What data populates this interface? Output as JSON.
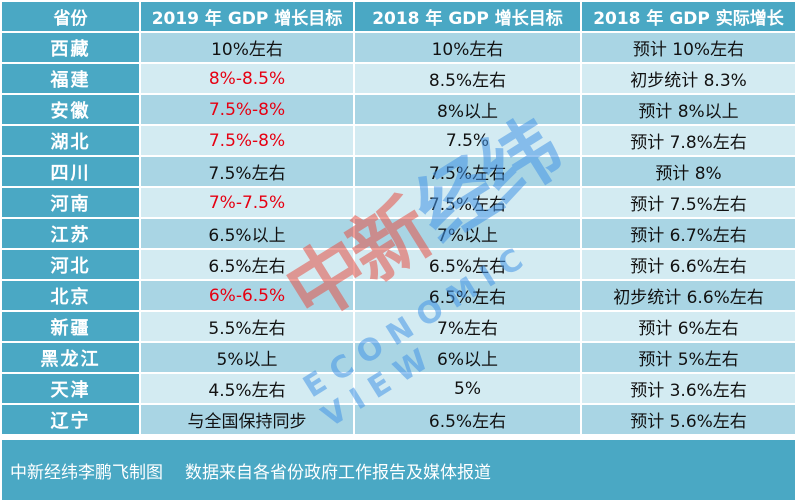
{
  "table": {
    "headers": [
      "省份",
      "2019 年 GDP 增长目标",
      "2018 年 GDP 增长目标",
      "2018 年 GDP 实际增长"
    ],
    "rows": [
      {
        "province": "西藏",
        "target2019": "10%左右",
        "target2019_red": false,
        "target2018": "10%左右",
        "actual2018": "预计 10%左右"
      },
      {
        "province": "福建",
        "target2019": "8%-8.5%",
        "target2019_red": true,
        "target2018": "8.5%左右",
        "actual2018": "初步统计 8.3%"
      },
      {
        "province": "安徽",
        "target2019": "7.5%-8%",
        "target2019_red": true,
        "target2018": "8%以上",
        "actual2018": "预计 8%以上"
      },
      {
        "province": "湖北",
        "target2019": "7.5%-8%",
        "target2019_red": true,
        "target2018": "7.5%",
        "actual2018": "预计 7.8%左右"
      },
      {
        "province": "四川",
        "target2019": "7.5%左右",
        "target2019_red": false,
        "target2018": "7.5%左右",
        "actual2018": "预计 8%"
      },
      {
        "province": "河南",
        "target2019": "7%-7.5%",
        "target2019_red": true,
        "target2018": "7.5%左右",
        "actual2018": "预计 7.5%左右"
      },
      {
        "province": "江苏",
        "target2019": "6.5%以上",
        "target2019_red": false,
        "target2018": "7%以上",
        "actual2018": "预计 6.7%左右"
      },
      {
        "province": "河北",
        "target2019": "6.5%左右",
        "target2019_red": false,
        "target2018": "6.5%左右",
        "actual2018": "预计 6.6%左右"
      },
      {
        "province": "北京",
        "target2019": "6%-6.5%",
        "target2019_red": true,
        "target2018": "6.5%左右",
        "actual2018": "初步统计 6.6%左右"
      },
      {
        "province": "新疆",
        "target2019": "5.5%左右",
        "target2019_red": false,
        "target2018": "7%左右",
        "actual2018": "预计 6%左右"
      },
      {
        "province": "黑龙江",
        "target2019": "5%以上",
        "target2019_red": false,
        "target2018": "6%以上",
        "actual2018": "预计 5%左右"
      },
      {
        "province": "天津",
        "target2019": "4.5%左右",
        "target2019_red": false,
        "target2018": "5%",
        "actual2018": "预计 3.6%左右"
      },
      {
        "province": "辽宁",
        "target2019": "与全国保持同步",
        "target2019_red": false,
        "target2018": "6.5%左右",
        "actual2018": "预计 5.6%左右"
      }
    ]
  },
  "footer": {
    "credit": "中新经纬李鹏飞制图",
    "source": "数据来自各省份政府工作报告及媒体报道"
  },
  "watermark": {
    "cn_part1": "中新",
    "cn_part2": "经纬",
    "en": "ECONOMIC VIEW"
  },
  "colors": {
    "header_bg": "#4aa8c4",
    "row_dark": "#a9d5e4",
    "row_light": "#d3ebf2",
    "highlight_red": "#e60012"
  }
}
